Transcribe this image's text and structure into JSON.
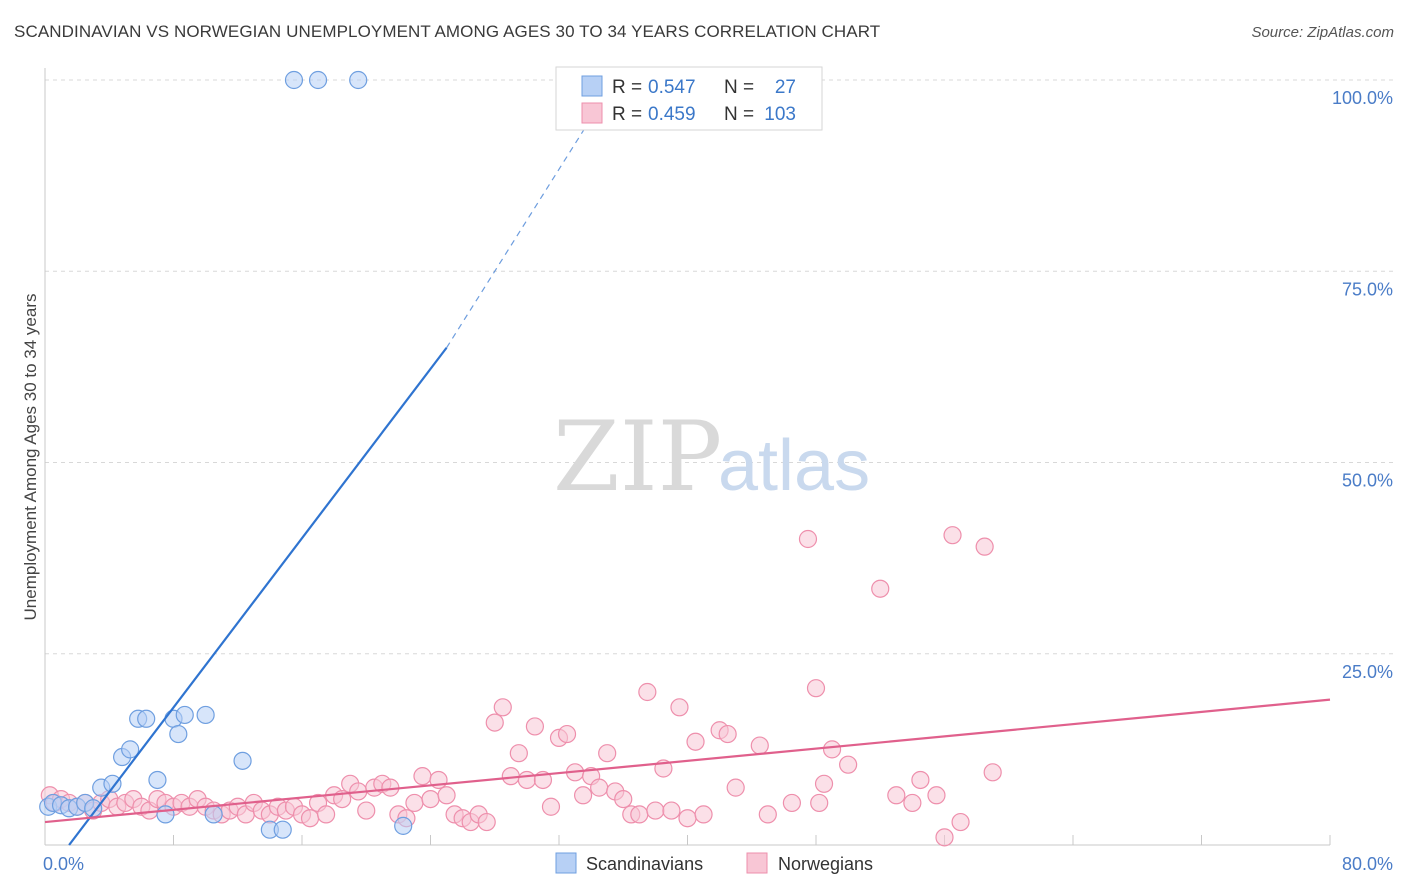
{
  "title": "SCANDINAVIAN VS NORWEGIAN UNEMPLOYMENT AMONG AGES 30 TO 34 YEARS CORRELATION CHART",
  "source": "Source: ZipAtlas.com",
  "watermark": {
    "zip": "ZIP",
    "atlas": "atlas"
  },
  "colors": {
    "scandinavian_fill": "#b7d0f5",
    "scandinavian_stroke": "#6f9fe0",
    "scandinavian_line": "#2f74d0",
    "norwegian_fill": "#f8c6d5",
    "norwegian_stroke": "#ee8fac",
    "norwegian_line": "#e0608c",
    "axis_text": "#4a7cc7",
    "grid": "#d8d8d8"
  },
  "legend": {
    "rows": [
      {
        "r_label": "R = ",
        "r_value": "0.547",
        "n_label": "N = ",
        "n_value": "27"
      },
      {
        "r_label": "R = ",
        "r_value": "0.459",
        "n_label": "N = ",
        "n_value": "103"
      }
    ]
  },
  "chart_data": {
    "type": "scatter",
    "title": "SCANDINAVIAN VS NORWEGIAN UNEMPLOYMENT AMONG AGES 30 TO 34 YEARS CORRELATION CHART",
    "xlabel": "",
    "ylabel": "Unemployment Among Ages 30 to 34 years",
    "xlim": [
      0,
      80
    ],
    "ylim": [
      0,
      100
    ],
    "x_tick_labels": [
      "0.0%",
      "80.0%"
    ],
    "y_ticks": [
      25,
      50,
      75,
      100
    ],
    "y_tick_labels": [
      "25.0%",
      "50.0%",
      "75.0%",
      "100.0%"
    ],
    "series": [
      {
        "name": "Scandinavians",
        "r": 0.547,
        "n": 27,
        "trend": {
          "x0": 1.5,
          "y0": 0,
          "x1": 25,
          "y1": 65,
          "dash_to_x": 35.5,
          "dash_to_y": 100
        },
        "points": [
          [
            0.2,
            5.0
          ],
          [
            0.5,
            5.5
          ],
          [
            1.0,
            5.2
          ],
          [
            1.5,
            4.8
          ],
          [
            2.0,
            5.0
          ],
          [
            2.5,
            5.5
          ],
          [
            3.0,
            4.8
          ],
          [
            3.5,
            7.5
          ],
          [
            4.2,
            8.0
          ],
          [
            4.8,
            11.5
          ],
          [
            5.3,
            12.5
          ],
          [
            5.8,
            16.5
          ],
          [
            6.3,
            16.5
          ],
          [
            7.0,
            8.5
          ],
          [
            7.5,
            4.0
          ],
          [
            8.0,
            16.5
          ],
          [
            8.3,
            14.5
          ],
          [
            8.7,
            17.0
          ],
          [
            10.0,
            17.0
          ],
          [
            10.5,
            4.0
          ],
          [
            12.3,
            11.0
          ],
          [
            14.0,
            2.0
          ],
          [
            14.8,
            2.0
          ],
          [
            22.3,
            2.5
          ],
          [
            15.5,
            100.0
          ],
          [
            17.0,
            100.0
          ],
          [
            19.5,
            100.0
          ]
        ]
      },
      {
        "name": "Norwegians",
        "r": 0.459,
        "n": 103,
        "trend": {
          "x0": 0,
          "y0": 3.0,
          "x1": 80,
          "y1": 19.0
        },
        "points": [
          [
            0.3,
            6.5
          ],
          [
            0.6,
            5.5
          ],
          [
            1.0,
            6.0
          ],
          [
            1.5,
            5.5
          ],
          [
            2.0,
            5.0
          ],
          [
            2.5,
            5.5
          ],
          [
            3.0,
            4.5
          ],
          [
            3.5,
            5.5
          ],
          [
            4.0,
            6.0
          ],
          [
            4.5,
            5.0
          ],
          [
            5.0,
            5.5
          ],
          [
            5.5,
            6.0
          ],
          [
            6.0,
            5.0
          ],
          [
            6.5,
            4.5
          ],
          [
            7.0,
            6.0
          ],
          [
            7.5,
            5.5
          ],
          [
            8.0,
            5.0
          ],
          [
            8.5,
            5.5
          ],
          [
            9.0,
            5.0
          ],
          [
            9.5,
            6.0
          ],
          [
            10.0,
            5.0
          ],
          [
            10.5,
            4.5
          ],
          [
            11.0,
            4.0
          ],
          [
            11.5,
            4.5
          ],
          [
            12.0,
            5.0
          ],
          [
            12.5,
            4.0
          ],
          [
            13.0,
            5.5
          ],
          [
            13.5,
            4.5
          ],
          [
            14.0,
            4.0
          ],
          [
            14.5,
            5.0
          ],
          [
            15.0,
            4.5
          ],
          [
            15.5,
            5.0
          ],
          [
            16.0,
            4.0
          ],
          [
            16.5,
            3.5
          ],
          [
            17.0,
            5.5
          ],
          [
            17.5,
            4.0
          ],
          [
            18.0,
            6.5
          ],
          [
            18.5,
            6.0
          ],
          [
            19.0,
            8.0
          ],
          [
            19.5,
            7.0
          ],
          [
            20.0,
            4.5
          ],
          [
            20.5,
            7.5
          ],
          [
            21.0,
            8.0
          ],
          [
            21.5,
            7.5
          ],
          [
            22.0,
            4.0
          ],
          [
            22.5,
            3.5
          ],
          [
            23.0,
            5.5
          ],
          [
            23.5,
            9.0
          ],
          [
            24.0,
            6.0
          ],
          [
            24.5,
            8.5
          ],
          [
            25.0,
            6.5
          ],
          [
            25.5,
            4.0
          ],
          [
            26.0,
            3.5
          ],
          [
            26.5,
            3.0
          ],
          [
            27.0,
            4.0
          ],
          [
            27.5,
            3.0
          ],
          [
            28.0,
            16.0
          ],
          [
            28.5,
            18.0
          ],
          [
            29.0,
            9.0
          ],
          [
            29.5,
            12.0
          ],
          [
            30.0,
            8.5
          ],
          [
            30.5,
            15.5
          ],
          [
            31.0,
            8.5
          ],
          [
            31.5,
            5.0
          ],
          [
            32.0,
            14.0
          ],
          [
            32.5,
            14.5
          ],
          [
            33.0,
            9.5
          ],
          [
            33.5,
            6.5
          ],
          [
            34.0,
            9.0
          ],
          [
            34.5,
            7.5
          ],
          [
            35.0,
            12.0
          ],
          [
            35.5,
            7.0
          ],
          [
            36.0,
            6.0
          ],
          [
            36.5,
            4.0
          ],
          [
            37.0,
            4.0
          ],
          [
            37.5,
            20.0
          ],
          [
            38.0,
            4.5
          ],
          [
            38.5,
            10.0
          ],
          [
            39.0,
            4.5
          ],
          [
            39.5,
            18.0
          ],
          [
            40.0,
            3.5
          ],
          [
            40.5,
            13.5
          ],
          [
            41.0,
            4.0
          ],
          [
            42.0,
            15.0
          ],
          [
            42.5,
            14.5
          ],
          [
            43.0,
            7.5
          ],
          [
            44.5,
            13.0
          ],
          [
            45.0,
            4.0
          ],
          [
            46.5,
            5.5
          ],
          [
            47.5,
            40.0
          ],
          [
            48.0,
            20.5
          ],
          [
            48.2,
            5.5
          ],
          [
            48.5,
            8.0
          ],
          [
            49.0,
            12.5
          ],
          [
            50.0,
            10.5
          ],
          [
            52.0,
            33.5
          ],
          [
            53.0,
            6.5
          ],
          [
            54.0,
            5.5
          ],
          [
            54.5,
            8.5
          ],
          [
            55.5,
            6.5
          ],
          [
            56.0,
            1.0
          ],
          [
            56.5,
            40.5
          ],
          [
            58.5,
            39.0
          ],
          [
            59.0,
            9.5
          ],
          [
            57.0,
            3.0
          ]
        ]
      }
    ]
  },
  "bottom_legend": {
    "scandinavians": "Scandinavians",
    "norwegians": "Norwegians"
  }
}
